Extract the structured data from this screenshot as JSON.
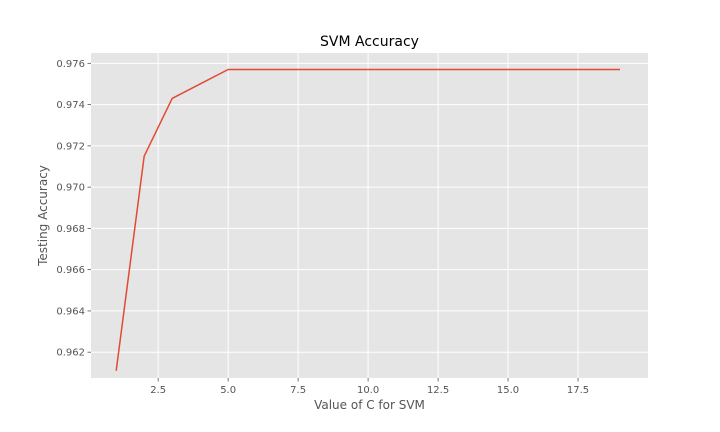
{
  "chart_data": {
    "type": "line",
    "title": "SVM Accuracy",
    "xlabel": "Value of C for SVM",
    "ylabel": "Testing Accuracy",
    "xlim": [
      0.1,
      20.0
    ],
    "ylim": [
      0.96075,
      0.9765
    ],
    "x_ticks": [
      2.5,
      5.0,
      7.5,
      10.0,
      12.5,
      15.0,
      17.5
    ],
    "x_tick_labels": [
      "2.5",
      "5.0",
      "7.5",
      "10.0",
      "12.5",
      "15.0",
      "17.5"
    ],
    "y_ticks": [
      0.962,
      0.964,
      0.966,
      0.968,
      0.97,
      0.972,
      0.974,
      0.976
    ],
    "y_tick_labels": [
      "0.962",
      "0.964",
      "0.966",
      "0.968",
      "0.970",
      "0.972",
      "0.974",
      "0.976"
    ],
    "grid": true,
    "series": [
      {
        "color": "#E24A33",
        "x": [
          1,
          2,
          3,
          4,
          5,
          6,
          7,
          8,
          9,
          10,
          11,
          12,
          13,
          14,
          15,
          16,
          17,
          18,
          19
        ],
        "y": [
          0.9611,
          0.9715,
          0.9743,
          0.975,
          0.9757,
          0.9757,
          0.9757,
          0.9757,
          0.9757,
          0.9757,
          0.9757,
          0.9757,
          0.9757,
          0.9757,
          0.9757,
          0.9757,
          0.9757,
          0.9757,
          0.9757
        ]
      }
    ],
    "colors": {
      "plot_bg": "#E5E5E5",
      "grid": "#FFFFFF"
    }
  }
}
